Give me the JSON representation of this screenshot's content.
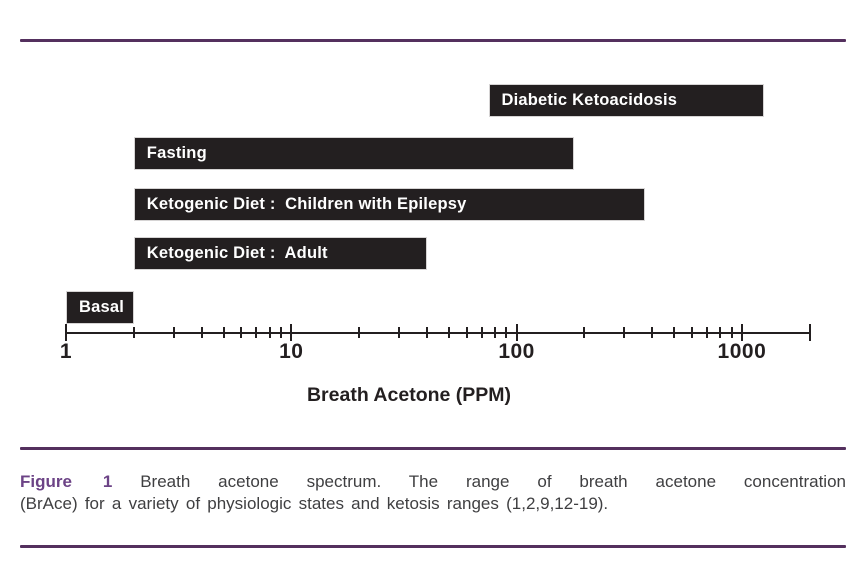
{
  "figure": {
    "colors": {
      "rule_purple": "#54305e",
      "figure_label_purple": "#6c4386",
      "bar_black": "#231f20",
      "caption_text": "#3f3f41"
    },
    "caption": {
      "label": "Figure 1",
      "line1_rest": "Breath acetone spectrum. The range of breath acetone concentration",
      "line2": "(BrAce) for a variety of physiologic states and ketosis ranges (1,2,9,12-19)."
    }
  },
  "chart_data": {
    "type": "bar",
    "subtype": "horizontal-range-bars",
    "title": "",
    "xlabel": "Breath Acetone (PPM)",
    "ylabel": "",
    "x_axis": {
      "scale": "log10",
      "min": 1,
      "max": 2000,
      "labeled_ticks": [
        1,
        10,
        100,
        1000
      ],
      "minor_ticks": [
        2,
        3,
        4,
        5,
        6,
        7,
        8,
        9,
        20,
        30,
        40,
        50,
        60,
        70,
        80,
        90,
        200,
        300,
        400,
        500,
        600,
        700,
        800,
        900
      ],
      "end_tick": 2000
    },
    "grid": false,
    "legend": false,
    "series": [
      {
        "label": "Diabetic Ketoacidosis",
        "min_ppm": 75,
        "max_ppm": 1250
      },
      {
        "label": "Fasting",
        "min_ppm": 2,
        "max_ppm": 180
      },
      {
        "label": "Ketogenic Diet :  Children with Epilepsy",
        "min_ppm": 2,
        "max_ppm": 370
      },
      {
        "label": "Ketogenic Diet :  Adult",
        "min_ppm": 2,
        "max_ppm": 40
      },
      {
        "label": "Basal",
        "min_ppm": 1,
        "max_ppm": 2
      }
    ]
  }
}
